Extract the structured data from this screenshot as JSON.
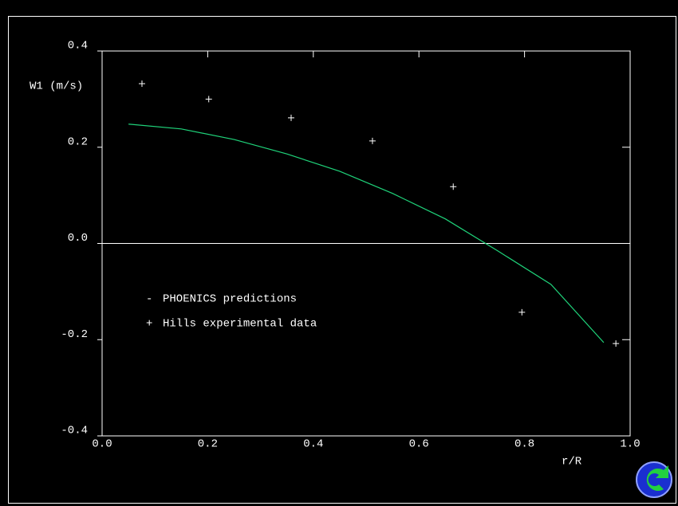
{
  "chart_data": {
    "type": "line-scatter",
    "ylabel": "W1 (m/s)",
    "xlabel": "r/R",
    "xlim": [
      0,
      1
    ],
    "ylim": [
      -0.4,
      0.4
    ],
    "xticks": [
      {
        "value": 0,
        "label": "0.0"
      },
      0.2,
      0.4,
      0.6,
      0.8,
      {
        "value": 1,
        "label": "1.0"
      }
    ],
    "yticks": [
      -0.4,
      -0.2,
      {
        "value": 0,
        "label": "0.0"
      },
      0.2,
      0.4
    ],
    "zero_line": true,
    "series": [
      {
        "name": "PHOENICS predictions",
        "marker": "-",
        "kind": "line",
        "color": "#1fd37a",
        "x": [
          0.05,
          0.15,
          0.25,
          0.35,
          0.45,
          0.55,
          0.65,
          0.75,
          0.85,
          0.95
        ],
        "values": [
          0.248,
          0.238,
          0.216,
          0.186,
          0.15,
          0.104,
          0.051,
          -0.016,
          -0.085,
          -0.206
        ]
      },
      {
        "name": "Hills experimental data",
        "marker": "+",
        "kind": "scatter",
        "color": "#ffffff",
        "x": [
          0.0755,
          0.202,
          0.358,
          0.512,
          0.665,
          0.795,
          0.973
        ],
        "values": [
          0.332,
          0.3,
          0.261,
          0.213,
          0.118,
          -0.143,
          -0.208
        ]
      }
    ]
  }
}
